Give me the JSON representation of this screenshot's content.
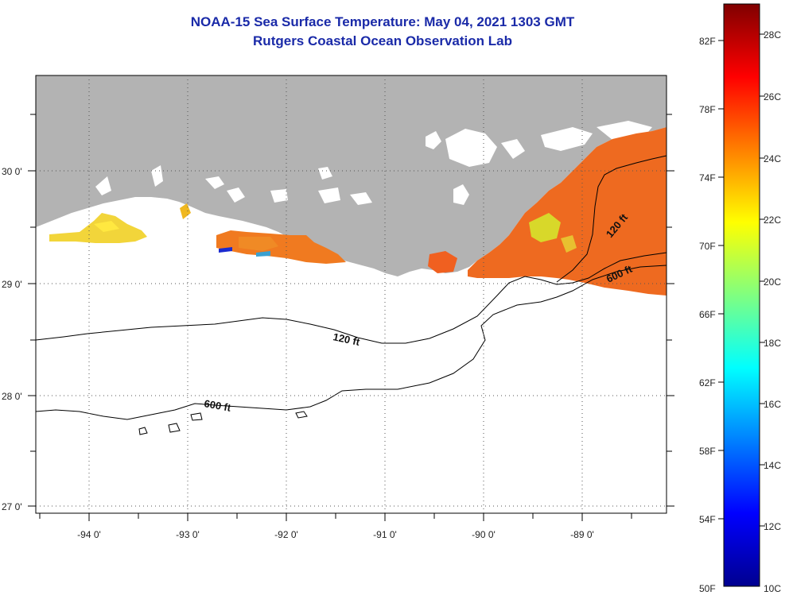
{
  "title": "NOAA-15 Sea Surface Temperature:  May 04, 2021 1303 GMT",
  "subtitle": "Rutgers Coastal Ocean Observation Lab",
  "map": {
    "lat_labels": [
      "30 0'",
      "29 0'",
      "28 0'",
      "27 0'"
    ],
    "lon_labels": [
      "-94 0'",
      "-93 0'",
      "-92 0'",
      "-91 0'",
      "-90 0'",
      "-89 0'"
    ],
    "contour_labels": [
      "120 ft",
      "600 ft",
      "120 ft",
      "600 ft"
    ],
    "colors": {
      "land": "#b3b3b3",
      "ocean": "#ffffff",
      "contour": "#000000"
    }
  },
  "colorbar": {
    "fahrenheit": [
      "82F",
      "78F",
      "74F",
      "70F",
      "66F",
      "62F",
      "58F",
      "54F",
      "50F"
    ],
    "celsius": [
      "28C",
      "26C",
      "24C",
      "22C",
      "20C",
      "18C",
      "16C",
      "14C",
      "12C",
      "10C"
    ],
    "gradient": [
      "#00008f",
      "#0000ff",
      "#00ffff",
      "#ffff00",
      "#ff0000",
      "#800000"
    ]
  }
}
